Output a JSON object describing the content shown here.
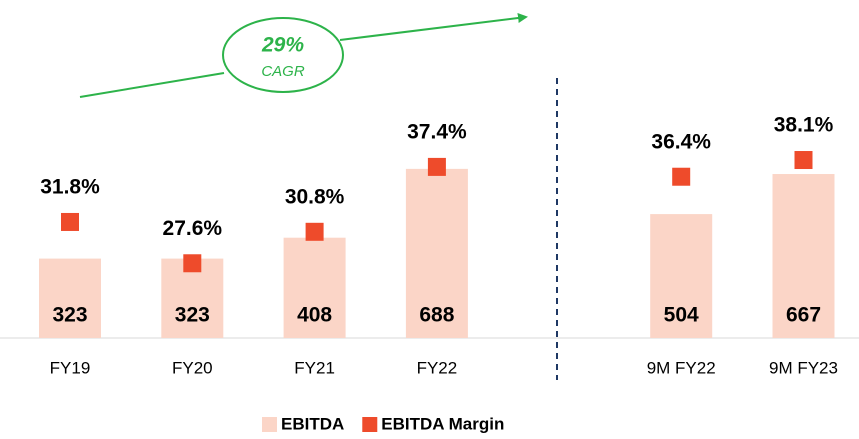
{
  "chart_data": {
    "type": "bar",
    "categories": [
      "FY19",
      "FY20",
      "FY21",
      "FY22",
      "9M FY22",
      "9M FY23"
    ],
    "series": [
      {
        "name": "EBITDA",
        "color": "#fbd5c7",
        "values": [
          323,
          323,
          408,
          688,
          504,
          667
        ]
      },
      {
        "name": "EBITDA Margin",
        "color": "#ee4b2b",
        "axis": "y2",
        "values": [
          31.8,
          27.6,
          30.8,
          37.4,
          36.4,
          38.1
        ],
        "value_labels": [
          "31.8%",
          "27.6%",
          "30.8%",
          "37.4%",
          "36.4%",
          "38.1%"
        ]
      }
    ],
    "ylim": [
      0,
      1200
    ],
    "y2lim": [
      20,
      50
    ],
    "annotations": [
      "29%",
      "CAGR"
    ],
    "legend": "bottom"
  }
}
